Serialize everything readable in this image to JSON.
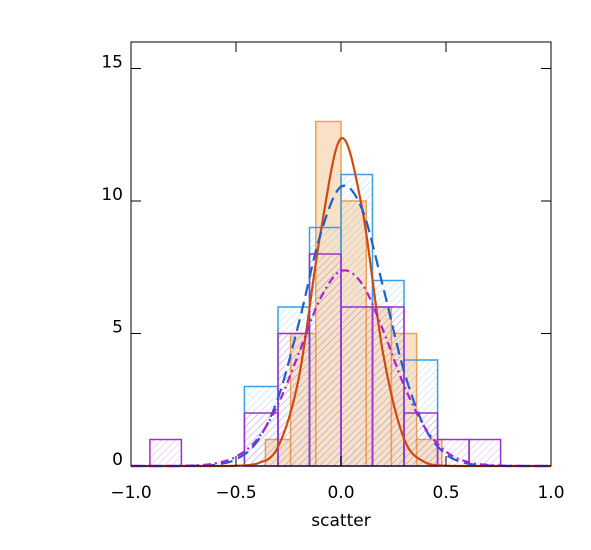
{
  "chart_data": {
    "type": "histogram",
    "xlabel": "scatter",
    "xlim": [
      -1.0,
      1.0
    ],
    "ylim": [
      0,
      16
    ],
    "xticks": [
      {
        "value": -1.0,
        "label": "−1.0"
      },
      {
        "value": -0.5,
        "label": "−0.5"
      },
      {
        "value": 0.0,
        "label": "0.0"
      },
      {
        "value": 0.5,
        "label": "0.5"
      },
      {
        "value": 1.0,
        "label": "1.0"
      }
    ],
    "yticks": [
      0,
      5,
      10,
      15
    ],
    "series": [
      {
        "color": "#f0a050",
        "fill": "#f7d4b0",
        "hatch": false,
        "bins": [
          -0.36,
          -0.24,
          -0.12,
          0.0,
          0.12,
          0.24,
          0.36,
          0.48
        ],
        "values": [
          1,
          5,
          13,
          10,
          6,
          5,
          1
        ]
      },
      {
        "color": "#3aa0e0",
        "fill": "#3aa0e0",
        "hatch": true,
        "bins": [
          -0.46,
          -0.3,
          -0.15,
          0.0,
          0.15,
          0.3,
          0.46
        ],
        "values": [
          3,
          6,
          9,
          11,
          7,
          4
        ]
      },
      {
        "color": "#9b30d0",
        "fill": "#9b30d0",
        "hatch": true,
        "bins": [
          -0.91,
          -0.76,
          -0.61,
          -0.46,
          -0.3,
          -0.15,
          0.0,
          0.15,
          0.3,
          0.46,
          0.61,
          0.76
        ],
        "values": [
          1,
          0,
          0,
          2,
          5,
          8,
          6,
          6,
          2,
          1,
          1
        ]
      }
    ],
    "curves": {
      "x": [
        -1.0,
        -0.9,
        -0.8,
        -0.7,
        -0.6,
        -0.5,
        -0.4,
        -0.3,
        -0.2,
        -0.1,
        0.0,
        0.1,
        0.2,
        0.3,
        0.4,
        0.5,
        0.6,
        0.7,
        0.8,
        0.9,
        1.0
      ],
      "series": [
        {
          "color": "#d04a10",
          "dash": "none",
          "values": [
            0,
            0,
            0,
            0,
            0,
            0.01,
            0.09,
            0.72,
            3.36,
            8.67,
            12.36,
            9.75,
            4.26,
            1.03,
            0.14,
            0.01,
            0,
            0,
            0,
            0,
            0
          ]
        },
        {
          "color": "#1e5fd0",
          "dash": "12 6",
          "values": [
            0,
            0,
            0,
            0.01,
            0.05,
            0.25,
            0.92,
            2.56,
            5.42,
            8.68,
            10.54,
            9.7,
            6.77,
            3.58,
            1.43,
            0.44,
            0.1,
            0.02,
            0,
            0,
            0
          ]
        },
        {
          "color": "#b020d0",
          "dash": "8 4 2 4",
          "values": [
            0,
            0,
            0,
            0.02,
            0.1,
            0.35,
            1.0,
            2.32,
            4.27,
            6.29,
            7.36,
            6.88,
            5.13,
            3.04,
            1.44,
            0.54,
            0.16,
            0.04,
            0.01,
            0,
            0
          ]
        }
      ]
    }
  }
}
